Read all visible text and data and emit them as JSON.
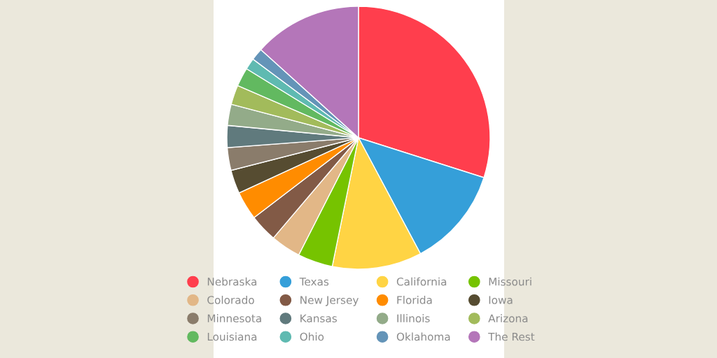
{
  "chart_data": {
    "type": "pie",
    "categories": [
      "Nebraska",
      "Texas",
      "California",
      "Missouri",
      "Colorado",
      "New Jersey",
      "Florida",
      "Iowa",
      "Minnesota",
      "Kansas",
      "Illinois",
      "Arizona",
      "Louisiana",
      "Ohio",
      "Oklahoma",
      "The Rest"
    ],
    "values": [
      29.9,
      12.3,
      11.0,
      4.3,
      3.7,
      3.4,
      3.5,
      2.9,
      2.8,
      2.7,
      2.6,
      2.4,
      2.3,
      1.4,
      1.5,
      13.3
    ],
    "colors": [
      "#ff3e4d",
      "#359fd9",
      "#ffd444",
      "#76c300",
      "#e2b787",
      "#825a46",
      "#ff8c00",
      "#564c31",
      "#8a7c6b",
      "#607a7d",
      "#93ab89",
      "#a2bb5b",
      "#62b960",
      "#5fbab1",
      "#6494b8",
      "#b476b9"
    ],
    "legend": "bottom"
  }
}
